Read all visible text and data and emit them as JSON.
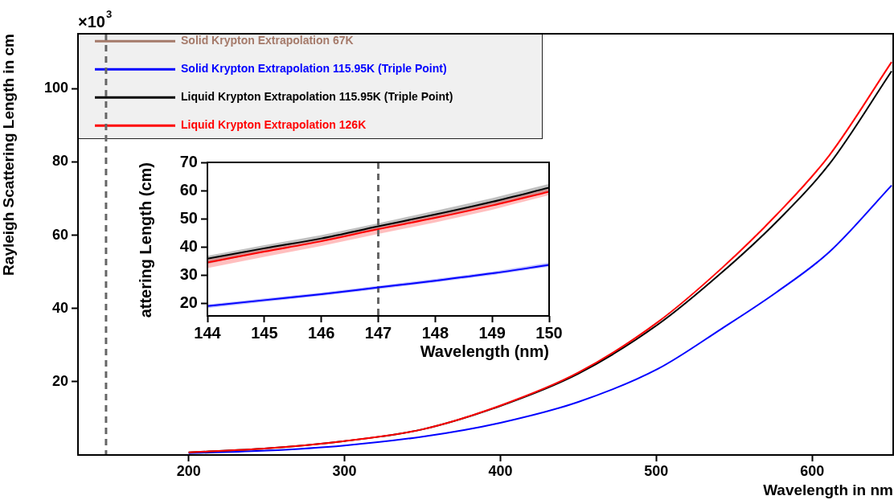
{
  "chart_data": [
    {
      "type": "line",
      "xlabel": "Wavelength in nm",
      "ylabel": "Rayleigh Scattering Length in cm",
      "annotations": [
        "×10$^{3}$"
      ],
      "legend": "top left",
      "x": [
        200,
        250,
        300,
        350,
        400,
        450,
        501,
        542,
        577,
        611,
        651
      ],
      "xlim": [
        129,
        652
      ],
      "xticks": [
        200,
        300,
        400,
        500,
        600
      ],
      "ylim": [
        0,
        115
      ],
      "yticks": [
        20,
        40,
        60,
        80,
        100
      ],
      "ref_lines": [
        {
          "axis": "x",
          "value": 147,
          "color": "#666666",
          "line_style": "dashed"
        }
      ],
      "series": [
        {
          "name": "Solid Krypton Extrapolation 67K",
          "color": "#a57a6a",
          "values": [
            null,
            null,
            null,
            null,
            null,
            null,
            null,
            null,
            null,
            null,
            null
          ]
        },
        {
          "name": "Solid Krypton Extrapolation 115.95K (Triple Point)",
          "color": "#0000ff",
          "values": [
            0.5,
            1.2,
            2.6,
            5.0,
            8.8,
            14.5,
            23.5,
            34.5,
            44.4,
            55.4,
            73.6
          ]
        },
        {
          "name": "Liquid Krypton Extrapolation 115.95K (Triple Point)",
          "color": "#000000",
          "values": [
            0.7,
            1.8,
            3.8,
            7.0,
            13.4,
            22.2,
            35.6,
            49.8,
            63.6,
            79.4,
            104.8
          ]
        },
        {
          "name": "Liquid Krypton Extrapolation 126K",
          "color": "#ff0000",
          "values": [
            0.7,
            1.8,
            3.8,
            7.0,
            13.5,
            22.5,
            36.3,
            51.0,
            65.5,
            81.8,
            107.3
          ]
        }
      ]
    },
    {
      "type": "line",
      "xlabel": "Wavelength (nm)",
      "ylabel": "attering Length (cm)",
      "x": [
        144,
        145,
        146,
        147,
        148,
        149,
        150
      ],
      "xlim": [
        144,
        150
      ],
      "xticks": [
        144,
        145,
        146,
        147,
        148,
        149,
        150
      ],
      "ylim": [
        15.5,
        70
      ],
      "yticks": [
        20,
        30,
        40,
        50,
        60,
        70
      ],
      "ref_lines": [
        {
          "axis": "x",
          "value": 147,
          "color": "#666666",
          "line_style": "dashed"
        }
      ],
      "series": [
        {
          "color": "#0000ff",
          "values": [
            19,
            21.1,
            23.2,
            25.6,
            28,
            30.6,
            33.6
          ],
          "lower": [
            18.3,
            20.5,
            22.6,
            25,
            27.4,
            30,
            33
          ],
          "upper": [
            19.6,
            21.7,
            23.8,
            26.2,
            28.6,
            31.2,
            34.4
          ]
        },
        {
          "color": "#000000",
          "values": [
            35.8,
            39.5,
            43,
            47.3,
            51.5,
            56,
            61
          ],
          "lower": [
            34,
            38.3,
            42,
            46.3,
            50.3,
            54.8,
            59.8
          ],
          "upper": [
            36.8,
            40.6,
            44.2,
            48.4,
            52.8,
            57.3,
            62.4
          ]
        },
        {
          "color": "#ff0000",
          "values": [
            34.5,
            38.3,
            42,
            46.3,
            50.3,
            54.7,
            59.6
          ],
          "lower": [
            32.5,
            36.5,
            40.3,
            44.6,
            48.7,
            53.2,
            58.4
          ],
          "upper": [
            35.5,
            39.3,
            43,
            47.3,
            51.3,
            55.7,
            60.6
          ]
        }
      ]
    }
  ]
}
